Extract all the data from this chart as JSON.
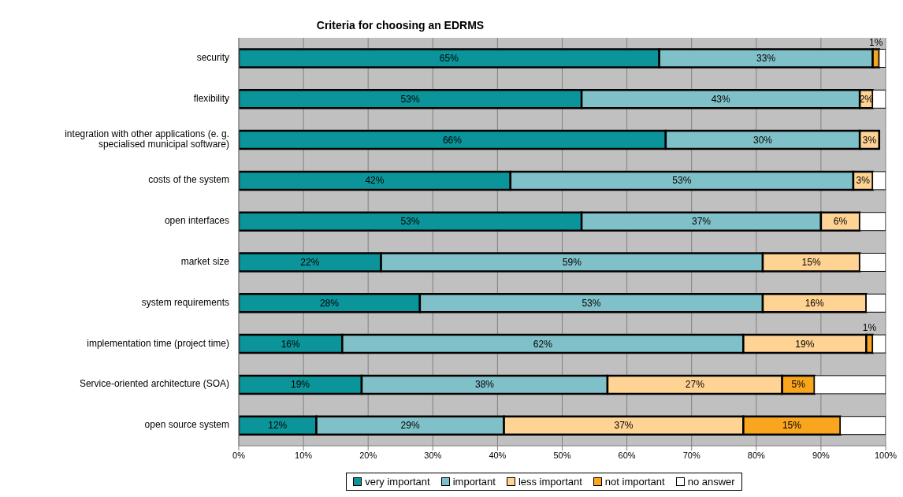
{
  "chart_data": {
    "type": "bar",
    "orientation": "horizontal",
    "stacked": true,
    "title": "Criteria for choosing an EDRMS",
    "categories": [
      "security",
      "flexibility",
      "integration with other applications (e. g. specialised municipal software)",
      "costs of the system",
      "open interfaces",
      "market size",
      "system requirements",
      "implementation time (project time)",
      "Service-oriented architecture (SOA)",
      "open source system"
    ],
    "series": [
      {
        "name": "very important",
        "color": "#0b9499",
        "values": [
          65,
          53,
          66,
          42,
          53,
          22,
          28,
          16,
          19,
          12
        ],
        "value_labels": [
          "65%",
          "53%",
          "66%",
          "42%",
          "53%",
          "22%",
          "28%",
          "16%",
          "19%",
          "12%"
        ]
      },
      {
        "name": "important",
        "color": "#80c0c8",
        "values": [
          33,
          43,
          30,
          53,
          37,
          59,
          53,
          62,
          38,
          29
        ],
        "value_labels": [
          "33%",
          "43%",
          "30%",
          "53%",
          "37%",
          "59%",
          "53%",
          "62%",
          "38%",
          "29%"
        ]
      },
      {
        "name": "less important",
        "color": "#ffd393",
        "values": [
          null,
          2,
          3,
          3,
          6,
          15,
          16,
          19,
          27,
          37
        ],
        "value_labels": [
          null,
          "2%",
          "3%",
          "3%",
          "6%",
          "15%",
          "16%",
          "19%",
          "27%",
          "37%"
        ]
      },
      {
        "name": "not important",
        "color": "#f9a51e",
        "values": [
          1,
          null,
          null,
          null,
          null,
          null,
          null,
          1,
          5,
          15
        ],
        "value_labels": [
          "1%",
          null,
          null,
          null,
          null,
          null,
          null,
          "1%",
          "5%",
          "15%"
        ]
      },
      {
        "name": "no answer",
        "color": "#ffffff",
        "values": [
          1,
          2,
          null,
          2,
          4,
          4,
          3,
          2,
          11,
          7
        ],
        "value_labels": [
          null,
          null,
          null,
          null,
          null,
          null,
          null,
          null,
          null,
          null
        ]
      }
    ],
    "xlim": [
      0,
      100
    ],
    "xticks": [
      {
        "value": 0,
        "label": "0%"
      },
      {
        "value": 10,
        "label": "10%"
      },
      {
        "value": 20,
        "label": "20%"
      },
      {
        "value": 30,
        "label": "30%"
      },
      {
        "value": 40,
        "label": "40%"
      },
      {
        "value": 50,
        "label": "50%"
      },
      {
        "value": 60,
        "label": "60%"
      },
      {
        "value": 70,
        "label": "70%"
      },
      {
        "value": 80,
        "label": "80%"
      },
      {
        "value": 90,
        "label": "90%"
      },
      {
        "value": 100,
        "label": "100%"
      }
    ],
    "grid": "x",
    "legend": "bottom"
  }
}
